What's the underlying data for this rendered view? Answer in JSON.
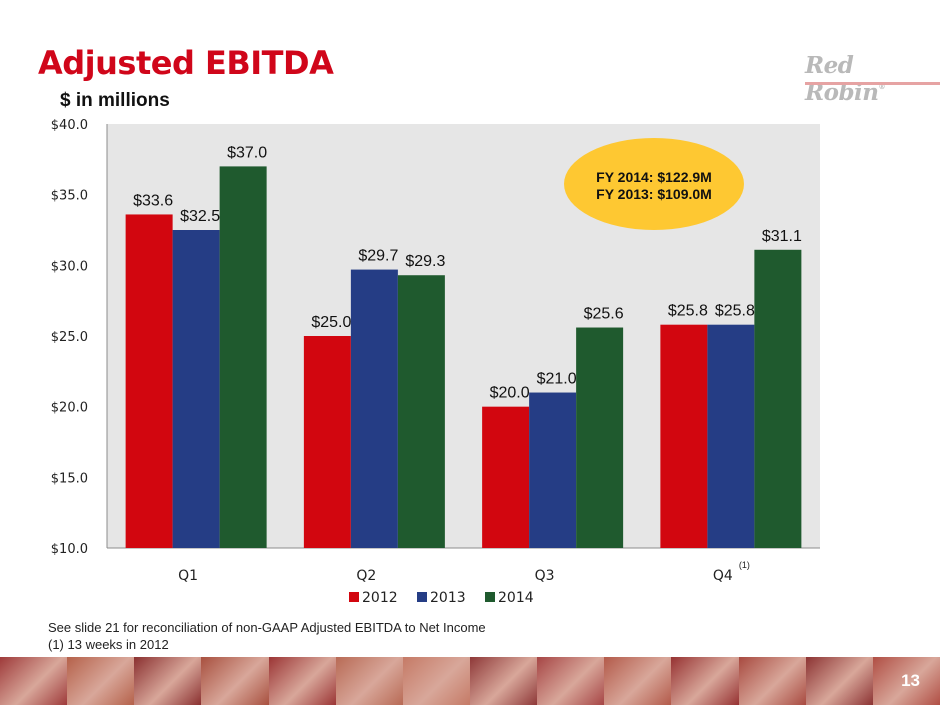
{
  "slide": {
    "title": "Adjusted EBITDA",
    "subtitle": "$ in millions",
    "logo_text": "Red Robin",
    "logo_mark": "®",
    "page_number": "13",
    "footnotes": [
      "See slide 21 for reconciliation of non-GAAP Adjusted EBITDA to Net Income",
      "(1) 13 weeks in 2012"
    ],
    "callout": {
      "lines": [
        "FY 2014: $122.9M",
        "FY 2013: $109.0M"
      ],
      "color": "#fec832"
    },
    "banner_colors": [
      "#9e3a3a",
      "#b5614a",
      "#8a3030",
      "#a8503f",
      "#9b3535",
      "#b86a55",
      "#c57a66",
      "#8e3838",
      "#a64545",
      "#b35a4a",
      "#963232",
      "#a84a40",
      "#8c3333",
      "#b04e44"
    ]
  },
  "chart_data": {
    "type": "bar",
    "title": "Adjusted EBITDA",
    "ylabel": "$ in millions",
    "xlabel": "",
    "categories": [
      "Q1",
      "Q2",
      "Q3",
      "Q4"
    ],
    "category_superscripts": [
      "",
      "",
      "",
      "(1)"
    ],
    "series": [
      {
        "name": "2012",
        "color": "#d2060f",
        "values": [
          33.6,
          25.0,
          20.0,
          25.8
        ],
        "labels": [
          "$33.6",
          "$25.0",
          "$20.0",
          "$25.8"
        ]
      },
      {
        "name": "2013",
        "color": "#253d85",
        "values": [
          32.5,
          29.7,
          21.0,
          25.8
        ],
        "labels": [
          "$32.5",
          "$29.7",
          "$21.0",
          "$25.8"
        ]
      },
      {
        "name": "2014",
        "color": "#1f5a2e",
        "values": [
          37.0,
          29.3,
          25.6,
          31.1
        ],
        "labels": [
          "$37.0",
          "$29.3",
          "$25.6",
          "$31.1"
        ]
      }
    ],
    "ylim": [
      10,
      40
    ],
    "yticks": [
      10,
      15,
      20,
      25,
      30,
      35,
      40
    ],
    "ytick_labels": [
      "$10.0",
      "$15.0",
      "$20.0",
      "$25.0",
      "$30.0",
      "$35.0",
      "$40.0"
    ],
    "grid": false,
    "plot_background": "#e6e6e6",
    "legend": {
      "position": "bottom",
      "entries": [
        "2012",
        "2013",
        "2014"
      ]
    }
  }
}
